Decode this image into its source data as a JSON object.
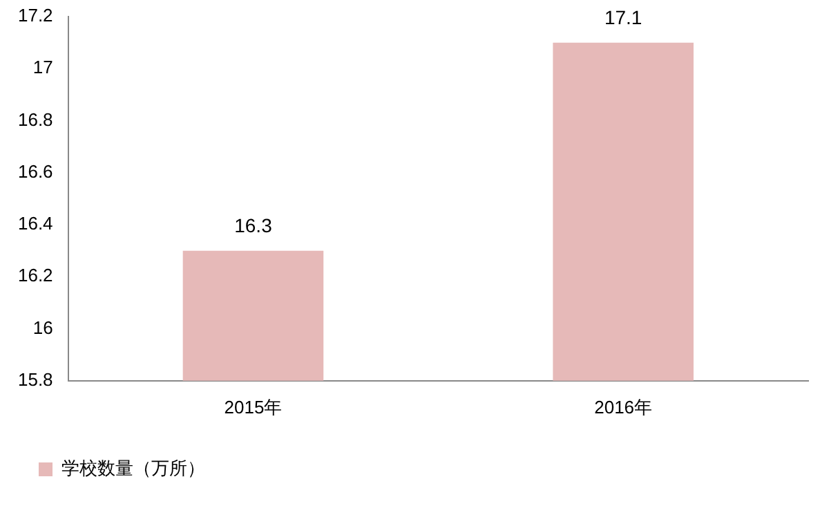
{
  "chart_data": {
    "type": "bar",
    "categories": [
      "2015年",
      "2016年"
    ],
    "series": [
      {
        "name": "学校数量（万所）",
        "color": "#e6b9b8",
        "values": [
          16.3,
          17.1
        ]
      }
    ],
    "ylim": [
      15.8,
      17.2
    ],
    "yticks": [
      15.8,
      16,
      16.2,
      16.4,
      16.6,
      16.8,
      17,
      17.2
    ],
    "grid": false,
    "legend": "bottom",
    "data_labels": true
  }
}
